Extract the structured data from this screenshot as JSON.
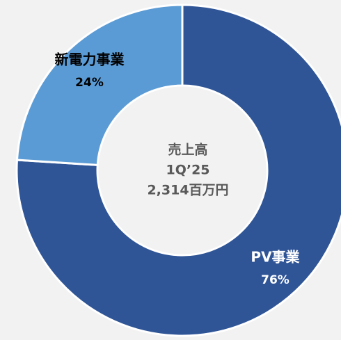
{
  "chart_data": {
    "type": "donut",
    "categories": [
      "PV事業",
      "新電力事業"
    ],
    "values": [
      76,
      24
    ],
    "value_labels": [
      "76%",
      "24%"
    ],
    "colors": [
      "#2f5597",
      "#5b9bd5"
    ],
    "label_colors": [
      "#ffffff",
      "#000000"
    ],
    "center_label": [
      "売上高",
      "1Q’25",
      "2,314百万円"
    ]
  }
}
